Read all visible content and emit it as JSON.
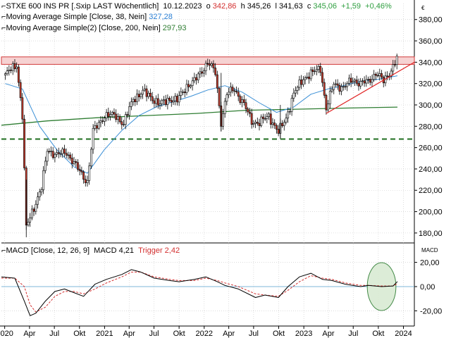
{
  "header": {
    "instrument": "STXE 600 INS PR [.Sxip LAST Wöchentlich]",
    "date": "10.12.2023",
    "open_label": "o",
    "open": "342,86",
    "high_label": "h",
    "high": "345,26",
    "low_label": "l",
    "low": "341,63",
    "close_label": "c",
    "close": "345,06",
    "change": "+1,59",
    "change_pct": "+0,46%",
    "currency": "€"
  },
  "legend": {
    "ma1_label": "Moving Average Simple [Close, 38, Nein]",
    "ma1_value": "327,28",
    "ma2_label": "Moving Average Simple(2) [Close, 200, Nein]",
    "ma2_value": "297,93",
    "macd_label": "MACD [Close, 12, 26, 9]",
    "macd_name": "MACD",
    "macd_value": "4,21",
    "trigger_name": "Trigger",
    "trigger_value": "2,42",
    "macd_axis_title": "MACD"
  },
  "colors": {
    "candle_up": "#ffffff",
    "candle_down": "#c0392b",
    "candle_outline": "#000000",
    "ma1": "#3a8fd6",
    "ma2": "#2e7d32",
    "resistance_fill": "#f6d2d2",
    "resistance_line": "#d23a3a",
    "trendline": "#e02020",
    "support": "#1f6e1f",
    "macd": "#000000",
    "trigger": "#d32f2f",
    "zero_line": "#7fb7d8",
    "highlight_fill": "#d9ead3",
    "highlight_stroke": "#2e7d32",
    "grid": "#c8c8c8"
  },
  "chart_data": [
    {
      "type": "candlestick",
      "title": "STXE 600 INS PR [.Sxip LAST Wöchentlich]",
      "ylim": [
        172,
        395
      ],
      "xlim": [
        "2019-12-20",
        "2024-02-10"
      ],
      "yticks": [
        "180,00",
        "200,00",
        "220,00",
        "240,00",
        "260,00",
        "280,00",
        "300,00",
        "320,00",
        "340,00",
        "360,00",
        "380,00"
      ],
      "yticks_values": [
        180,
        200,
        220,
        240,
        260,
        280,
        300,
        320,
        340,
        360,
        380
      ],
      "close_path": [
        [
          "2020-01-03",
          328
        ],
        [
          "2020-02-14",
          338
        ],
        [
          "2020-03-06",
          290
        ],
        [
          "2020-03-20",
          185
        ],
        [
          "2020-04-10",
          200
        ],
        [
          "2020-05-15",
          222
        ],
        [
          "2020-06-05",
          258
        ],
        [
          "2020-07-10",
          253
        ],
        [
          "2020-08-14",
          256
        ],
        [
          "2020-09-25",
          240
        ],
        [
          "2020-10-30",
          228
        ],
        [
          "2020-11-20",
          275
        ],
        [
          "2020-12-31",
          290
        ],
        [
          "2021-02-12",
          290
        ],
        [
          "2021-03-12",
          282
        ],
        [
          "2021-04-16",
          306
        ],
        [
          "2021-05-21",
          312
        ],
        [
          "2021-06-18",
          308
        ],
        [
          "2021-07-23",
          300
        ],
        [
          "2021-08-27",
          306
        ],
        [
          "2021-09-24",
          304
        ],
        [
          "2021-10-29",
          318
        ],
        [
          "2021-11-26",
          322
        ],
        [
          "2021-12-31",
          335
        ],
        [
          "2022-01-14",
          340
        ],
        [
          "2022-02-11",
          330
        ],
        [
          "2022-03-04",
          284
        ],
        [
          "2022-03-25",
          310
        ],
        [
          "2022-04-22",
          315
        ],
        [
          "2022-05-27",
          300
        ],
        [
          "2022-06-24",
          285
        ],
        [
          "2022-07-22",
          283
        ],
        [
          "2022-08-26",
          290
        ],
        [
          "2022-09-30",
          274
        ],
        [
          "2022-10-28",
          288
        ],
        [
          "2022-11-25",
          310
        ],
        [
          "2022-12-30",
          325
        ],
        [
          "2023-02-03",
          330
        ],
        [
          "2023-03-03",
          335
        ],
        [
          "2023-03-24",
          296
        ],
        [
          "2023-04-21",
          320
        ],
        [
          "2023-05-26",
          316
        ],
        [
          "2023-06-30",
          324
        ],
        [
          "2023-07-28",
          320
        ],
        [
          "2023-08-25",
          322
        ],
        [
          "2023-09-22",
          330
        ],
        [
          "2023-10-20",
          322
        ],
        [
          "2023-11-24",
          336
        ],
        [
          "2023-12-10",
          345.06
        ]
      ],
      "ma1": {
        "name": "Moving Average Simple [Close, 38, Nein]",
        "points": [
          [
            "2020-01-03",
            320
          ],
          [
            "2020-03-06",
            315
          ],
          [
            "2020-05-08",
            280
          ],
          [
            "2020-07-10",
            258
          ],
          [
            "2020-09-11",
            242
          ],
          [
            "2020-10-30",
            236
          ],
          [
            "2020-12-31",
            258
          ],
          [
            "2021-03-05",
            276
          ],
          [
            "2021-05-07",
            290
          ],
          [
            "2021-07-09",
            298
          ],
          [
            "2021-09-10",
            303
          ],
          [
            "2021-11-12",
            308
          ],
          [
            "2022-01-14",
            314
          ],
          [
            "2022-03-18",
            318
          ],
          [
            "2022-05-20",
            312
          ],
          [
            "2022-07-22",
            302
          ],
          [
            "2022-09-23",
            293
          ],
          [
            "2022-11-25",
            298
          ],
          [
            "2023-01-27",
            310
          ],
          [
            "2023-03-31",
            315
          ],
          [
            "2023-05-26",
            318
          ],
          [
            "2023-07-28",
            322
          ],
          [
            "2023-09-29",
            324
          ],
          [
            "2023-12-10",
            327.28
          ]
        ]
      },
      "ma2": {
        "name": "Moving Average Simple(2) [Close, 200, Nein]",
        "points": [
          [
            "2019-12-20",
            281
          ],
          [
            "2020-06-05",
            285
          ],
          [
            "2020-12-04",
            288
          ],
          [
            "2021-06-04",
            290
          ],
          [
            "2021-12-03",
            292
          ],
          [
            "2022-06-03",
            295
          ],
          [
            "2022-12-02",
            296
          ],
          [
            "2023-06-02",
            297
          ],
          [
            "2023-12-10",
            297.93
          ]
        ]
      },
      "resistance_zone": [
        338,
        345
      ],
      "support_level": 268,
      "trendline": [
        [
          "2023-03-24",
          292
        ],
        [
          "2024-02-10",
          340
        ]
      ]
    },
    {
      "type": "line",
      "title": "MACD [Close, 12, 26, 9]",
      "ylim": [
        -27,
        30
      ],
      "yticks": [
        "20,00",
        "0,00",
        "-20,00"
      ],
      "yticks_values": [
        20,
        0,
        -20
      ],
      "xticks": [
        "2020",
        "Apr",
        "Jul",
        "Okt",
        "2021",
        "Apr",
        "Jul",
        "Okt",
        "2022",
        "Apr",
        "Jul",
        "Okt",
        "2023",
        "Apr",
        "Jul",
        "Okt",
        "2024"
      ],
      "xticks_dates": [
        "2020-01-01",
        "2020-04-01",
        "2020-07-01",
        "2020-10-01",
        "2021-01-01",
        "2021-04-01",
        "2021-07-01",
        "2021-10-01",
        "2022-01-01",
        "2022-04-01",
        "2022-07-01",
        "2022-10-01",
        "2023-01-01",
        "2023-04-01",
        "2023-07-01",
        "2023-10-01",
        "2024-01-01"
      ],
      "series": [
        {
          "name": "MACD",
          "points": [
            [
              "2019-12-20",
              8
            ],
            [
              "2020-02-07",
              7
            ],
            [
              "2020-03-13",
              -12
            ],
            [
              "2020-04-03",
              -24
            ],
            [
              "2020-04-24",
              -22
            ],
            [
              "2020-05-29",
              -12
            ],
            [
              "2020-07-03",
              -4
            ],
            [
              "2020-08-07",
              -2
            ],
            [
              "2020-09-11",
              -5
            ],
            [
              "2020-10-16",
              -8
            ],
            [
              "2020-11-27",
              2
            ],
            [
              "2021-01-08",
              6
            ],
            [
              "2021-03-05",
              10
            ],
            [
              "2021-04-09",
              14
            ],
            [
              "2021-05-14",
              12
            ],
            [
              "2021-07-02",
              7
            ],
            [
              "2021-08-27",
              5
            ],
            [
              "2021-10-01",
              4
            ],
            [
              "2021-11-26",
              6
            ],
            [
              "2022-01-07",
              8
            ],
            [
              "2022-02-18",
              4
            ],
            [
              "2022-03-18",
              1
            ],
            [
              "2022-05-06",
              -2
            ],
            [
              "2022-07-08",
              -9
            ],
            [
              "2022-08-12",
              -7
            ],
            [
              "2022-09-30",
              -9
            ],
            [
              "2022-11-04",
              0
            ],
            [
              "2022-12-16",
              8
            ],
            [
              "2023-01-27",
              11
            ],
            [
              "2023-03-10",
              6
            ],
            [
              "2023-04-14",
              5
            ],
            [
              "2023-06-02",
              2
            ],
            [
              "2023-07-28",
              0
            ],
            [
              "2023-08-25",
              1
            ],
            [
              "2023-10-13",
              0
            ],
            [
              "2023-11-24",
              0.5
            ],
            [
              "2023-12-10",
              4.21
            ]
          ]
        },
        {
          "name": "Trigger",
          "points": [
            [
              "2019-12-20",
              7
            ],
            [
              "2020-02-07",
              7
            ],
            [
              "2020-03-13",
              0
            ],
            [
              "2020-04-03",
              -15
            ],
            [
              "2020-04-24",
              -21
            ],
            [
              "2020-05-29",
              -17
            ],
            [
              "2020-07-03",
              -8
            ],
            [
              "2020-08-07",
              -4
            ],
            [
              "2020-09-11",
              -4
            ],
            [
              "2020-10-16",
              -6
            ],
            [
              "2020-11-27",
              -2
            ],
            [
              "2021-01-08",
              3
            ],
            [
              "2021-03-05",
              8
            ],
            [
              "2021-04-09",
              12
            ],
            [
              "2021-05-14",
              12
            ],
            [
              "2021-07-02",
              8
            ],
            [
              "2021-08-27",
              6
            ],
            [
              "2021-10-01",
              5
            ],
            [
              "2021-11-26",
              5
            ],
            [
              "2022-01-07",
              7
            ],
            [
              "2022-02-18",
              5
            ],
            [
              "2022-03-18",
              3
            ],
            [
              "2022-05-06",
              0
            ],
            [
              "2022-07-08",
              -6
            ],
            [
              "2022-08-12",
              -7
            ],
            [
              "2022-09-30",
              -8
            ],
            [
              "2022-11-04",
              -3
            ],
            [
              "2022-12-16",
              4
            ],
            [
              "2023-01-27",
              9
            ],
            [
              "2023-03-10",
              7
            ],
            [
              "2023-04-14",
              6
            ],
            [
              "2023-06-02",
              3
            ],
            [
              "2023-07-28",
              1
            ],
            [
              "2023-08-25",
              1
            ],
            [
              "2023-10-13",
              0.5
            ],
            [
              "2023-11-24",
              0.5
            ],
            [
              "2023-12-10",
              2.42
            ]
          ]
        }
      ],
      "highlight": {
        "center": [
          "2023-10-13",
          0
        ],
        "radius_days": 50,
        "shape": "ellipse"
      }
    }
  ]
}
